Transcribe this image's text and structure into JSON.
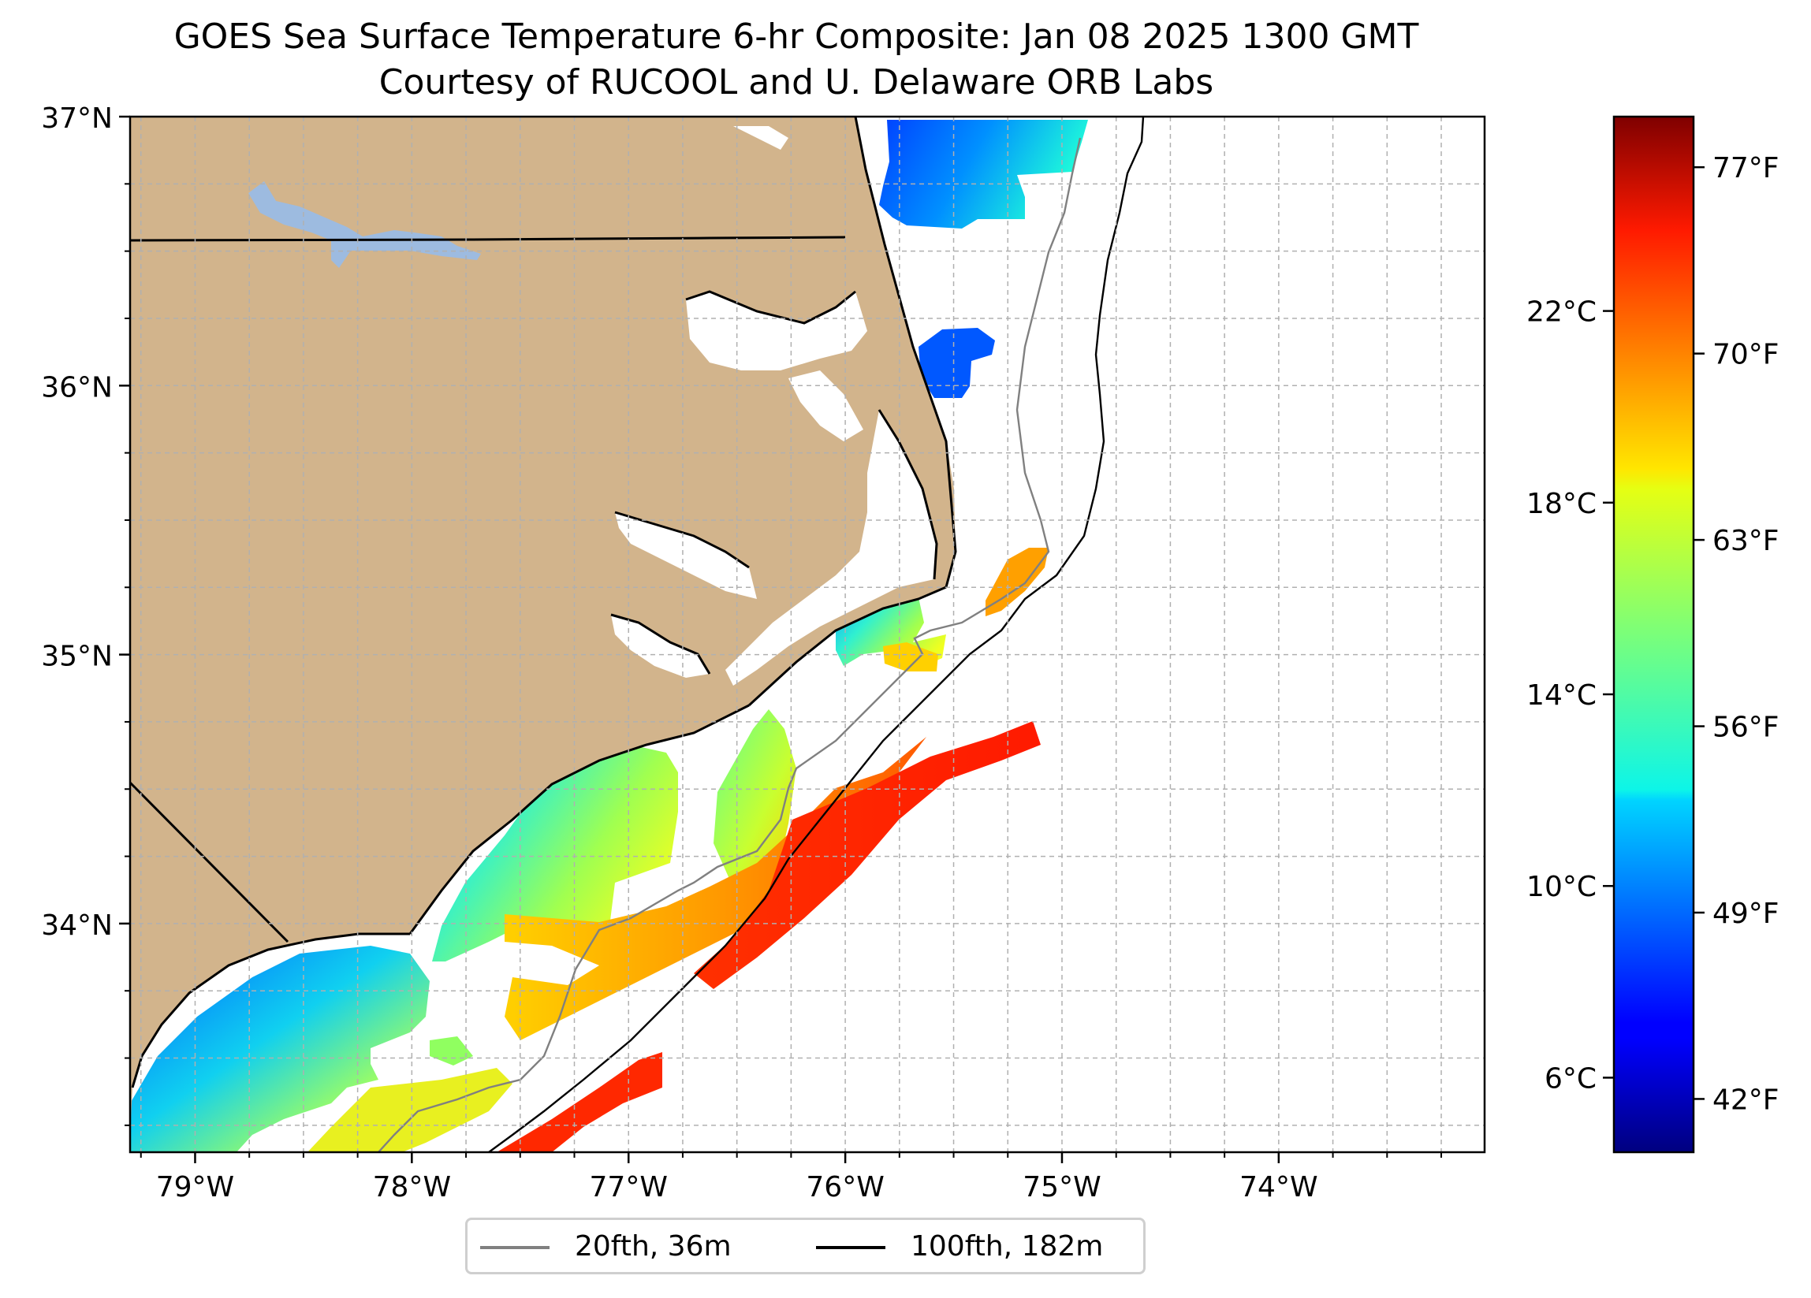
{
  "title": {
    "line1": "GOES Sea Surface Temperature 6-hr Composite: Jan 08 2025 1300 GMT",
    "line2": "Courtesy of RUCOOL and U. Delaware ORB Labs"
  },
  "map": {
    "extent": {
      "lon": [
        -79.3,
        -73.05
      ],
      "lat": [
        33.15,
        37.0
      ]
    },
    "lat_ticks": [
      {
        "value": 37,
        "label": "37°N"
      },
      {
        "value": 36,
        "label": "36°N"
      },
      {
        "value": 35,
        "label": "35°N"
      },
      {
        "value": 34,
        "label": "34°N"
      }
    ],
    "lon_ticks": [
      {
        "value": -79,
        "label": "79°W"
      },
      {
        "value": -78,
        "label": "78°W"
      },
      {
        "value": -77,
        "label": "77°W"
      },
      {
        "value": -76,
        "label": "76°W"
      },
      {
        "value": -75,
        "label": "75°W"
      },
      {
        "value": -74,
        "label": "74°W"
      }
    ],
    "grid": true,
    "land_color": "#d2b48c",
    "lake_color": "#9dbbe0"
  },
  "colorbar": {
    "celsius_ticks": [
      {
        "value": 6,
        "label": "6°C"
      },
      {
        "value": 10,
        "label": "10°C"
      },
      {
        "value": 14,
        "label": "14°C"
      },
      {
        "value": 18,
        "label": "18°C"
      },
      {
        "value": 22,
        "label": "22°C"
      }
    ],
    "fahrenheit_ticks": [
      {
        "value": 42,
        "label": "42°F"
      },
      {
        "value": 49,
        "label": "49°F"
      },
      {
        "value": 56,
        "label": "56°F"
      },
      {
        "value": 63,
        "label": "63°F"
      },
      {
        "value": 70,
        "label": "70°F"
      },
      {
        "value": 77,
        "label": "77°F"
      }
    ],
    "range_f": [
      40,
      78.9
    ],
    "colormap": "jet"
  },
  "legend": {
    "items": [
      {
        "label": "20fth, 36m",
        "color": "#808080"
      },
      {
        "label": "100fth, 182m",
        "color": "#000000"
      }
    ]
  }
}
